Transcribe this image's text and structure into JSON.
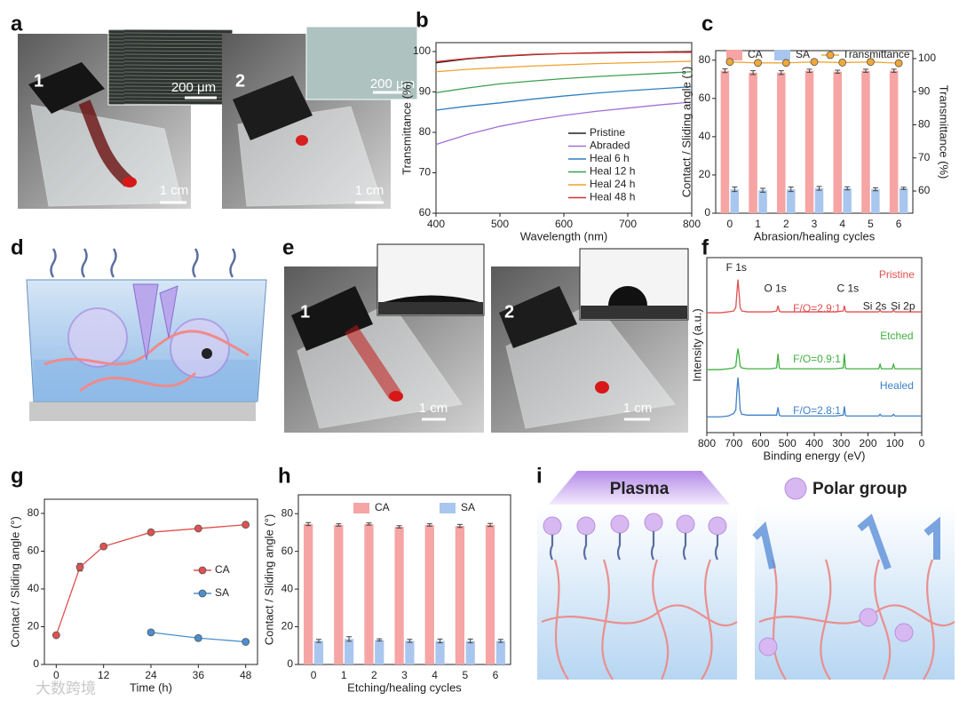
{
  "figure": {
    "panel_labels": [
      "a",
      "b",
      "c",
      "d",
      "e",
      "f",
      "g",
      "h",
      "i"
    ],
    "a": {
      "photo1": {
        "label": "1",
        "inset_scale": "200 μm",
        "scale": "1 cm"
      },
      "photo2": {
        "label": "2",
        "inset_scale": "200 μm",
        "scale": "1 cm"
      }
    },
    "e": {
      "photo1": {
        "label": "1",
        "scale": "1 cm"
      },
      "photo2": {
        "label": "2",
        "scale": "1 cm"
      }
    },
    "i": {
      "left": "Plasma",
      "right": "Polar group"
    },
    "watermark": "大数跨境"
  },
  "chart_data": [
    {
      "type": "line",
      "xlabel": "Wavelength (nm)",
      "ylabel": "Transmittance (%)",
      "x": [
        400,
        450,
        500,
        550,
        600,
        650,
        700,
        750,
        800
      ],
      "xlim": [
        400,
        800
      ],
      "xticks": [
        400,
        500,
        600,
        700,
        800
      ],
      "ylim": [
        60,
        102.2
      ],
      "yticks": [
        60,
        70,
        80,
        90,
        100
      ],
      "series": [
        {
          "name": "Pristine",
          "color": "#222222",
          "values": [
            97.2,
            98.2,
            98.8,
            99.2,
            99.5,
            99.7,
            99.8,
            99.9,
            100
          ]
        },
        {
          "name": "Abraded",
          "color": "#a070d8",
          "values": [
            77,
            79.5,
            81.5,
            83,
            84.2,
            85.2,
            86,
            86.8,
            87.5
          ]
        },
        {
          "name": "Heal 6 h",
          "color": "#2f7fc0",
          "values": [
            85.5,
            86.5,
            87.3,
            88.2,
            89,
            89.7,
            90.3,
            90.8,
            91.3
          ]
        },
        {
          "name": "Heal 12 h",
          "color": "#3aa050",
          "values": [
            89.8,
            91,
            92,
            92.7,
            93.3,
            93.8,
            94.2,
            94.6,
            95
          ]
        },
        {
          "name": "Heal 24 h",
          "color": "#f0a030",
          "values": [
            95,
            95.6,
            96,
            96.4,
            96.7,
            97,
            97.2,
            97.4,
            97.6
          ]
        },
        {
          "name": "Heal 48 h",
          "color": "#d83030",
          "values": [
            97.5,
            98.3,
            98.9,
            99.3,
            99.5,
            99.6,
            99.7,
            99.8,
            99.8
          ]
        }
      ]
    },
    {
      "type": "bar",
      "xlabel": "Abrasion/healing cycles",
      "ylabel": "Contact / Sliding angle (°)",
      "y2label": "Transmittance (%)",
      "categories": [
        "0",
        "1",
        "2",
        "3",
        "4",
        "5",
        "6"
      ],
      "ylim": [
        0,
        85
      ],
      "yticks": [
        0,
        20,
        40,
        60,
        80
      ],
      "y2lim": [
        53.3,
        102.4
      ],
      "y2ticks": [
        60,
        70,
        80,
        90,
        100
      ],
      "series": [
        {
          "name": "CA",
          "color": "#f6a4a4",
          "values": [
            74.5,
            73.5,
            73.5,
            74.5,
            74,
            74.5,
            74.5
          ],
          "errors": [
            1,
            1,
            1,
            0.8,
            0.8,
            0.8,
            0.8
          ]
        },
        {
          "name": "SA",
          "color": "#a9c7ee",
          "values": [
            12.5,
            12,
            12.5,
            13,
            13,
            12.5,
            13
          ],
          "errors": [
            1.2,
            1,
            1.2,
            1,
            0.8,
            0.8,
            0.6
          ]
        },
        {
          "name": "Transmittance",
          "type": "line",
          "axis": "y2",
          "marker": true,
          "color": "#f0a838",
          "values": [
            99,
            98.7,
            98.7,
            99,
            98.8,
            99,
            98.6
          ],
          "errors": [
            0.5,
            0.5,
            0.5,
            0.4,
            0.4,
            0.4,
            0.4
          ]
        }
      ]
    },
    {
      "type": "line",
      "xlabel": "Binding energy (eV)",
      "ylabel": "Intensity (a.u.)",
      "x": [
        800,
        750,
        720,
        700,
        692,
        688,
        684,
        680,
        676,
        670,
        650,
        560,
        540,
        535,
        530,
        525,
        500,
        320,
        292,
        288,
        284,
        280,
        200,
        160,
        155,
        150,
        110,
        105,
        100,
        50,
        0
      ],
      "xlim": [
        800,
        0
      ],
      "xticks": [
        800,
        700,
        600,
        500,
        400,
        300,
        200,
        100,
        0
      ],
      "ylim": [
        0,
        100
      ],
      "series": [
        {
          "name": "Pristine",
          "color": "#e05050",
          "values": [
            68.5,
            68.5,
            69,
            69.5,
            71.5,
            80,
            87.5,
            80,
            71.5,
            69.5,
            69,
            69,
            69.5,
            72.5,
            69.5,
            69,
            69,
            69,
            69.5,
            72.5,
            69.5,
            69,
            69,
            69,
            70,
            69,
            69,
            70,
            69,
            69,
            69
          ]
        },
        {
          "name": "Etched",
          "color": "#40b040",
          "values": [
            36,
            36,
            36.5,
            37,
            38,
            44,
            48,
            44,
            38,
            37,
            36.5,
            36.5,
            37,
            45,
            37,
            36.5,
            36.5,
            36.5,
            37,
            45,
            37,
            36.5,
            36.5,
            36.5,
            39,
            36.5,
            36.5,
            39,
            36.5,
            36.5,
            36.5
          ]
        },
        {
          "name": "Healed",
          "color": "#4080c8",
          "values": [
            9,
            9,
            9.5,
            11,
            13,
            24,
            31.5,
            24,
            13,
            10.5,
            10,
            10,
            10,
            14.5,
            10,
            9.5,
            9.5,
            9.5,
            10,
            15,
            10,
            9.5,
            9.5,
            9.5,
            10.5,
            9.5,
            9.5,
            10.5,
            9.5,
            9.5,
            9.5
          ]
        }
      ],
      "annotations": [
        {
          "text": "F 1s",
          "x": 690,
          "y": 94,
          "color": "#222222"
        },
        {
          "text": "O 1s",
          "x": 545,
          "y": 82,
          "color": "#222222"
        },
        {
          "text": "C 1s",
          "x": 275,
          "y": 82,
          "color": "#222222"
        },
        {
          "text": "Si 2s",
          "x": 175,
          "y": 72,
          "color": "#222222"
        },
        {
          "text": "Si 2p",
          "x": 70,
          "y": 72,
          "color": "#222222"
        },
        {
          "text": "Pristine",
          "x": 93,
          "y": 90,
          "color": "#e05050"
        },
        {
          "text": "F/O=2.9:1",
          "x": 390,
          "y": 70.6,
          "color": "#e05050"
        },
        {
          "text": "Etched",
          "x": 93,
          "y": 55,
          "color": "#40b040"
        },
        {
          "text": "F/O=0.9:1",
          "x": 390,
          "y": 41.6,
          "color": "#40b040"
        },
        {
          "text": "Healed",
          "x": 93,
          "y": 26.4,
          "color": "#4080c8"
        },
        {
          "text": "F/O=2.8:1",
          "x": 390,
          "y": 12.2,
          "color": "#4080c8"
        }
      ]
    },
    {
      "type": "line",
      "xlabel": "Time (h)",
      "ylabel": "Contact / Sliding angle (°)",
      "x": [
        0,
        6,
        12,
        24,
        36,
        48
      ],
      "xlim": [
        -3,
        51
      ],
      "xticks": [
        0,
        12,
        24,
        36,
        48
      ],
      "ylim": [
        0,
        87.5
      ],
      "yticks": [
        0,
        20,
        40,
        60,
        80
      ],
      "series": [
        {
          "name": "CA",
          "color": "#e05050",
          "marker": true,
          "values": [
            15.5,
            51.5,
            62.5,
            70,
            72,
            74
          ],
          "errors": [
            1.2,
            2,
            1,
            1.2,
            1.2,
            1
          ]
        },
        {
          "name": "SA",
          "color": "#4a8fd0",
          "marker": true,
          "values": [
            null,
            null,
            null,
            17,
            14,
            12
          ],
          "errors": [
            null,
            null,
            null,
            1,
            1,
            0.8
          ]
        }
      ]
    },
    {
      "type": "bar",
      "xlabel": "Etching/healing cycles",
      "ylabel": "Contact / Sliding angle (°)",
      "categories": [
        "0",
        "1",
        "2",
        "3",
        "4",
        "5",
        "6"
      ],
      "ylim": [
        0,
        90
      ],
      "yticks": [
        0,
        20,
        40,
        60,
        80
      ],
      "series": [
        {
          "name": "CA",
          "color": "#f6a4a4",
          "values": [
            74.5,
            74,
            74.5,
            73,
            74,
            73.5,
            74
          ],
          "errors": [
            0.8,
            0.6,
            0.6,
            0.6,
            0.6,
            0.8,
            0.8
          ]
        },
        {
          "name": "SA",
          "color": "#a9c7ee",
          "values": [
            12.5,
            13.5,
            13,
            12.5,
            12.5,
            12.5,
            12.5
          ],
          "errors": [
            0.8,
            1.2,
            0.6,
            0.8,
            1,
            1,
            0.8
          ]
        }
      ]
    }
  ]
}
